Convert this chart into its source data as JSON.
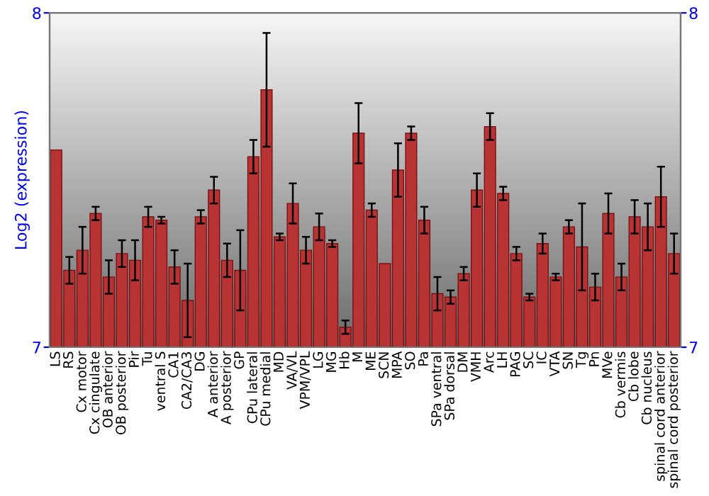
{
  "chart_data": {
    "type": "bar",
    "ylabel": "Log2 (expression)",
    "categories": [
      "LS",
      "RS",
      "Cx motor",
      "Cx cingulate",
      "OB anterior",
      "OB posterior",
      "Pir",
      "Tu",
      "ventral S",
      "CA1",
      "CA2/CA3",
      "DG",
      "A anterior",
      "A posterior",
      "GP",
      "CPu lateral",
      "CPu medial",
      "MD",
      "VA/VL",
      "VPM/VPL",
      "LG",
      "MG",
      "Hb",
      "M",
      "ME",
      "SCN",
      "MPA",
      "SO",
      "Pa",
      "SPa ventral",
      "SPa dorsal",
      "DM",
      "VMH",
      "Arc",
      "LH",
      "PAG",
      "SC",
      "IC",
      "VTA",
      "SN",
      "Tg",
      "Pn",
      "MVe",
      "Cb vermis",
      "Cb lobe",
      "Cb nucleus",
      "spinal cord anterior",
      "spinal cord posterior"
    ],
    "values": [
      7.59,
      7.23,
      7.29,
      7.4,
      7.21,
      7.28,
      7.26,
      7.39,
      7.38,
      7.24,
      7.14,
      7.39,
      7.47,
      7.26,
      7.23,
      7.57,
      7.77,
      7.33,
      7.43,
      7.29,
      7.36,
      7.31,
      7.06,
      7.64,
      7.41,
      7.25,
      7.53,
      7.64,
      7.38,
      7.16,
      7.15,
      7.22,
      7.47,
      7.66,
      7.46,
      7.28,
      7.15,
      7.31,
      7.21,
      7.36,
      7.3,
      7.18,
      7.4,
      7.21,
      7.39,
      7.36,
      7.45,
      7.28
    ],
    "errors": [
      null,
      0.04,
      0.07,
      0.02,
      0.05,
      0.04,
      0.06,
      0.03,
      0.01,
      0.05,
      0.11,
      0.02,
      0.04,
      0.05,
      0.12,
      0.05,
      0.17,
      0.01,
      0.06,
      0.04,
      0.04,
      0.01,
      0.02,
      0.09,
      0.02,
      null,
      0.08,
      0.02,
      0.04,
      0.05,
      0.02,
      0.02,
      0.05,
      0.04,
      0.02,
      0.02,
      0.01,
      0.03,
      0.01,
      0.02,
      0.13,
      0.04,
      0.06,
      0.04,
      0.05,
      0.07,
      0.09,
      0.06
    ],
    "color": "#b83434",
    "ylim": [
      7,
      8
    ],
    "yticks": [
      7,
      8
    ],
    "y2lim": [
      7,
      8
    ],
    "y2ticks": [
      7,
      8
    ],
    "grid": false,
    "legend": false
  }
}
